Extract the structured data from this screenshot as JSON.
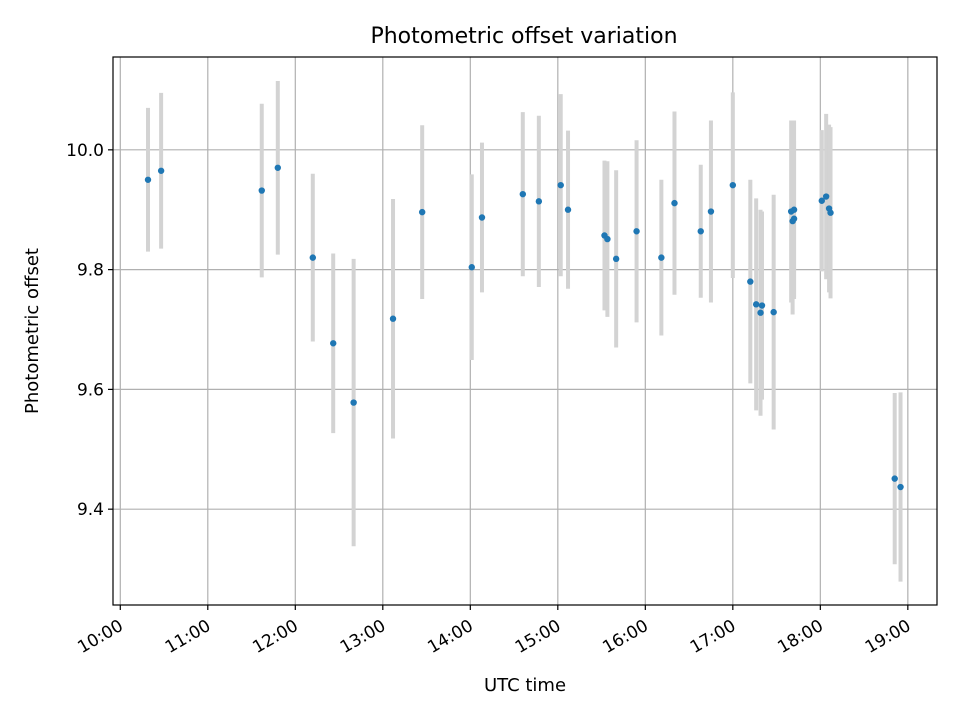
{
  "chart_data": {
    "type": "scatter",
    "title": "Photometric offset variation",
    "xlabel": "UTC time",
    "ylabel": "Photometric offset",
    "grid": true,
    "x_ticks": [
      "10:00",
      "11:00",
      "12:00",
      "13:00",
      "14:00",
      "15:00",
      "16:00",
      "17:00",
      "18:00",
      "19:00"
    ],
    "y_ticks": [
      "9.4",
      "9.6",
      "9.8",
      "10.0"
    ],
    "xlim": [
      "09:55",
      "19:20"
    ],
    "ylim": [
      9.24,
      10.155
    ],
    "colors": {
      "marker": "#1f77b4",
      "errorbar": "#d3d3d3",
      "grid": "#b0b0b0"
    },
    "series": [
      {
        "points": [
          {
            "x": "10:19",
            "y": 9.95,
            "yerr": 0.12
          },
          {
            "x": "10:28",
            "y": 9.965,
            "yerr": 0.13
          },
          {
            "x": "11:37",
            "y": 9.932,
            "yerr": 0.145
          },
          {
            "x": "11:48",
            "y": 9.97,
            "yerr": 0.145
          },
          {
            "x": "12:12",
            "y": 9.82,
            "yerr": 0.14
          },
          {
            "x": "12:26",
            "y": 9.677,
            "yerr": 0.15
          },
          {
            "x": "12:40",
            "y": 9.578,
            "yerr": 0.24
          },
          {
            "x": "13:07",
            "y": 9.718,
            "yerr": 0.2
          },
          {
            "x": "13:27",
            "y": 9.896,
            "yerr": 0.145
          },
          {
            "x": "14:01",
            "y": 9.804,
            "yerr": 0.155
          },
          {
            "x": "14:08",
            "y": 9.887,
            "yerr": 0.125
          },
          {
            "x": "14:36",
            "y": 9.926,
            "yerr": 0.137
          },
          {
            "x": "14:47",
            "y": 9.914,
            "yerr": 0.143
          },
          {
            "x": "15:02",
            "y": 9.941,
            "yerr": 0.152
          },
          {
            "x": "15:07",
            "y": 9.9,
            "yerr": 0.132
          },
          {
            "x": "15:32",
            "y": 9.857,
            "yerr": 0.125
          },
          {
            "x": "15:34",
            "y": 9.851,
            "yerr": 0.13
          },
          {
            "x": "15:40",
            "y": 9.818,
            "yerr": 0.148
          },
          {
            "x": "15:54",
            "y": 9.864,
            "yerr": 0.152
          },
          {
            "x": "16:11",
            "y": 9.82,
            "yerr": 0.13
          },
          {
            "x": "16:20",
            "y": 9.911,
            "yerr": 0.153
          },
          {
            "x": "16:38",
            "y": 9.864,
            "yerr": 0.111
          },
          {
            "x": "16:45",
            "y": 9.897,
            "yerr": 0.152
          },
          {
            "x": "17:00",
            "y": 9.941,
            "yerr": 0.155
          },
          {
            "x": "17:12",
            "y": 9.78,
            "yerr": 0.17
          },
          {
            "x": "17:16",
            "y": 9.742,
            "yerr": 0.177
          },
          {
            "x": "17:19",
            "y": 9.728,
            "yerr": 0.172
          },
          {
            "x": "17:20",
            "y": 9.74,
            "yerr": 0.157
          },
          {
            "x": "17:28",
            "y": 9.729,
            "yerr": 0.196
          },
          {
            "x": "17:40",
            "y": 9.897,
            "yerr": 0.152
          },
          {
            "x": "17:41",
            "y": 9.881,
            "yerr": 0.156
          },
          {
            "x": "17:42",
            "y": 9.9,
            "yerr": 0.149
          },
          {
            "x": "17:42",
            "y": 9.885,
            "yerr": 0.13
          },
          {
            "x": "18:01",
            "y": 9.915,
            "yerr": 0.118
          },
          {
            "x": "18:04",
            "y": 9.922,
            "yerr": 0.138
          },
          {
            "x": "18:06",
            "y": 9.902,
            "yerr": 0.14
          },
          {
            "x": "18:07",
            "y": 9.895,
            "yerr": 0.143
          },
          {
            "x": "18:51",
            "y": 9.451,
            "yerr": 0.143
          },
          {
            "x": "18:55",
            "y": 9.437,
            "yerr": 0.158
          }
        ]
      }
    ]
  }
}
